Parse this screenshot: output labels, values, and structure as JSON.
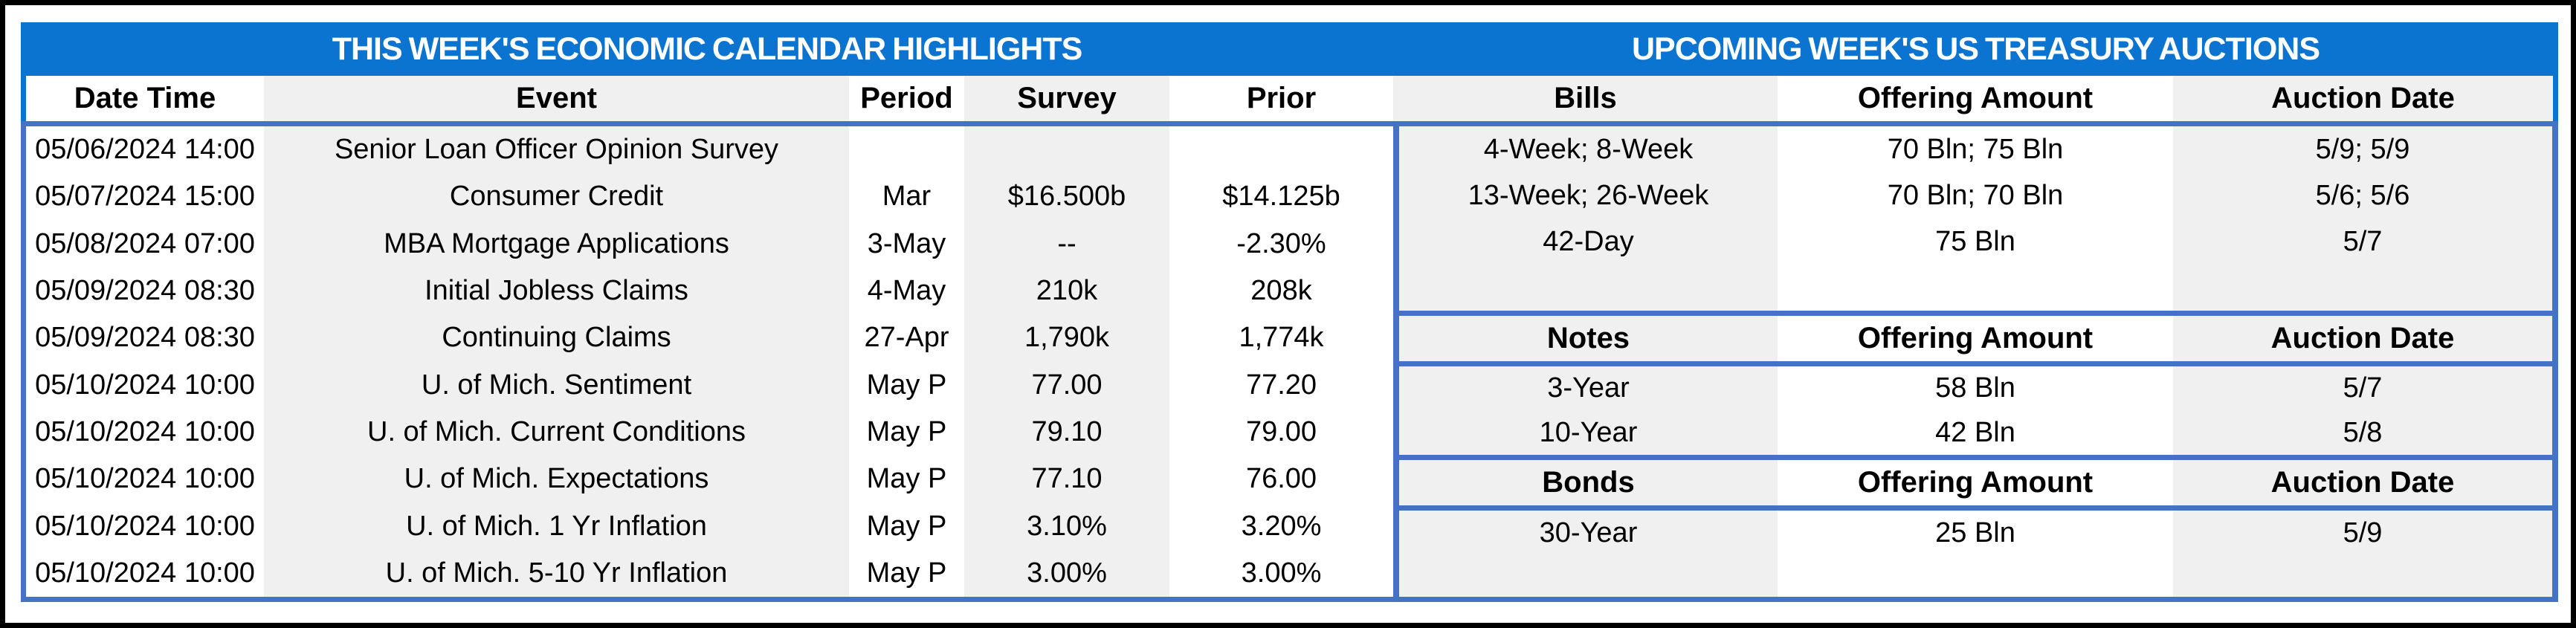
{
  "colors": {
    "title_bar_blue": "#0B73D0",
    "divider_blue": "#4472C4",
    "cell_gray": "#F0F0F0",
    "outer_border_black": "#000000"
  },
  "left_table": {
    "title": "THIS WEEK'S ECONOMIC CALENDAR HIGHLIGHTS",
    "columns": [
      "Date Time",
      "Event",
      "Period",
      "Survey",
      "Prior"
    ],
    "rows": [
      [
        "05/06/2024 14:00",
        "Senior Loan Officer Opinion Survey",
        "",
        "",
        ""
      ],
      [
        "05/07/2024 15:00",
        "Consumer Credit",
        "Mar",
        "$16.500b",
        "$14.125b"
      ],
      [
        "05/08/2024 07:00",
        "MBA Mortgage Applications",
        "3-May",
        "--",
        "-2.30%"
      ],
      [
        "05/09/2024 08:30",
        "Initial Jobless Claims",
        "4-May",
        "210k",
        "208k"
      ],
      [
        "05/09/2024 08:30",
        "Continuing Claims",
        "27-Apr",
        "1,790k",
        "1,774k"
      ],
      [
        "05/10/2024 10:00",
        "U. of Mich. Sentiment",
        "May P",
        "77.00",
        "77.20"
      ],
      [
        "05/10/2024 10:00",
        "U. of Mich. Current Conditions",
        "May P",
        "79.10",
        "79.00"
      ],
      [
        "05/10/2024 10:00",
        "U. of Mich. Expectations",
        "May P",
        "77.10",
        "76.00"
      ],
      [
        "05/10/2024 10:00",
        "U. of Mich. 1 Yr Inflation",
        "May P",
        "3.10%",
        "3.20%"
      ],
      [
        "05/10/2024 10:00",
        "U. of Mich. 5-10 Yr Inflation",
        "May P",
        "3.00%",
        "3.00%"
      ]
    ]
  },
  "right_table": {
    "title": "UPCOMING WEEK'S US TREASURY AUCTIONS",
    "columns": [
      "Bills",
      "Offering Amount",
      "Auction Date"
    ],
    "bills_rows": [
      [
        "4-Week; 8-Week",
        "70 Bln; 75 Bln",
        "5/9; 5/9"
      ],
      [
        "13-Week; 26-Week",
        "70 Bln; 70 Bln",
        "5/6; 5/6"
      ],
      [
        "42-Day",
        "75 Bln",
        "5/7"
      ]
    ],
    "notes": {
      "columns": [
        "Notes",
        "Offering Amount",
        "Auction Date"
      ],
      "rows": [
        [
          "3-Year",
          "58 Bln",
          "5/7"
        ],
        [
          "10-Year",
          "42 Bln",
          "5/8"
        ]
      ]
    },
    "bonds": {
      "columns": [
        "Bonds",
        "Offering Amount",
        "Auction Date"
      ],
      "rows": [
        [
          "30-Year",
          "25 Bln",
          "5/9"
        ]
      ]
    }
  }
}
